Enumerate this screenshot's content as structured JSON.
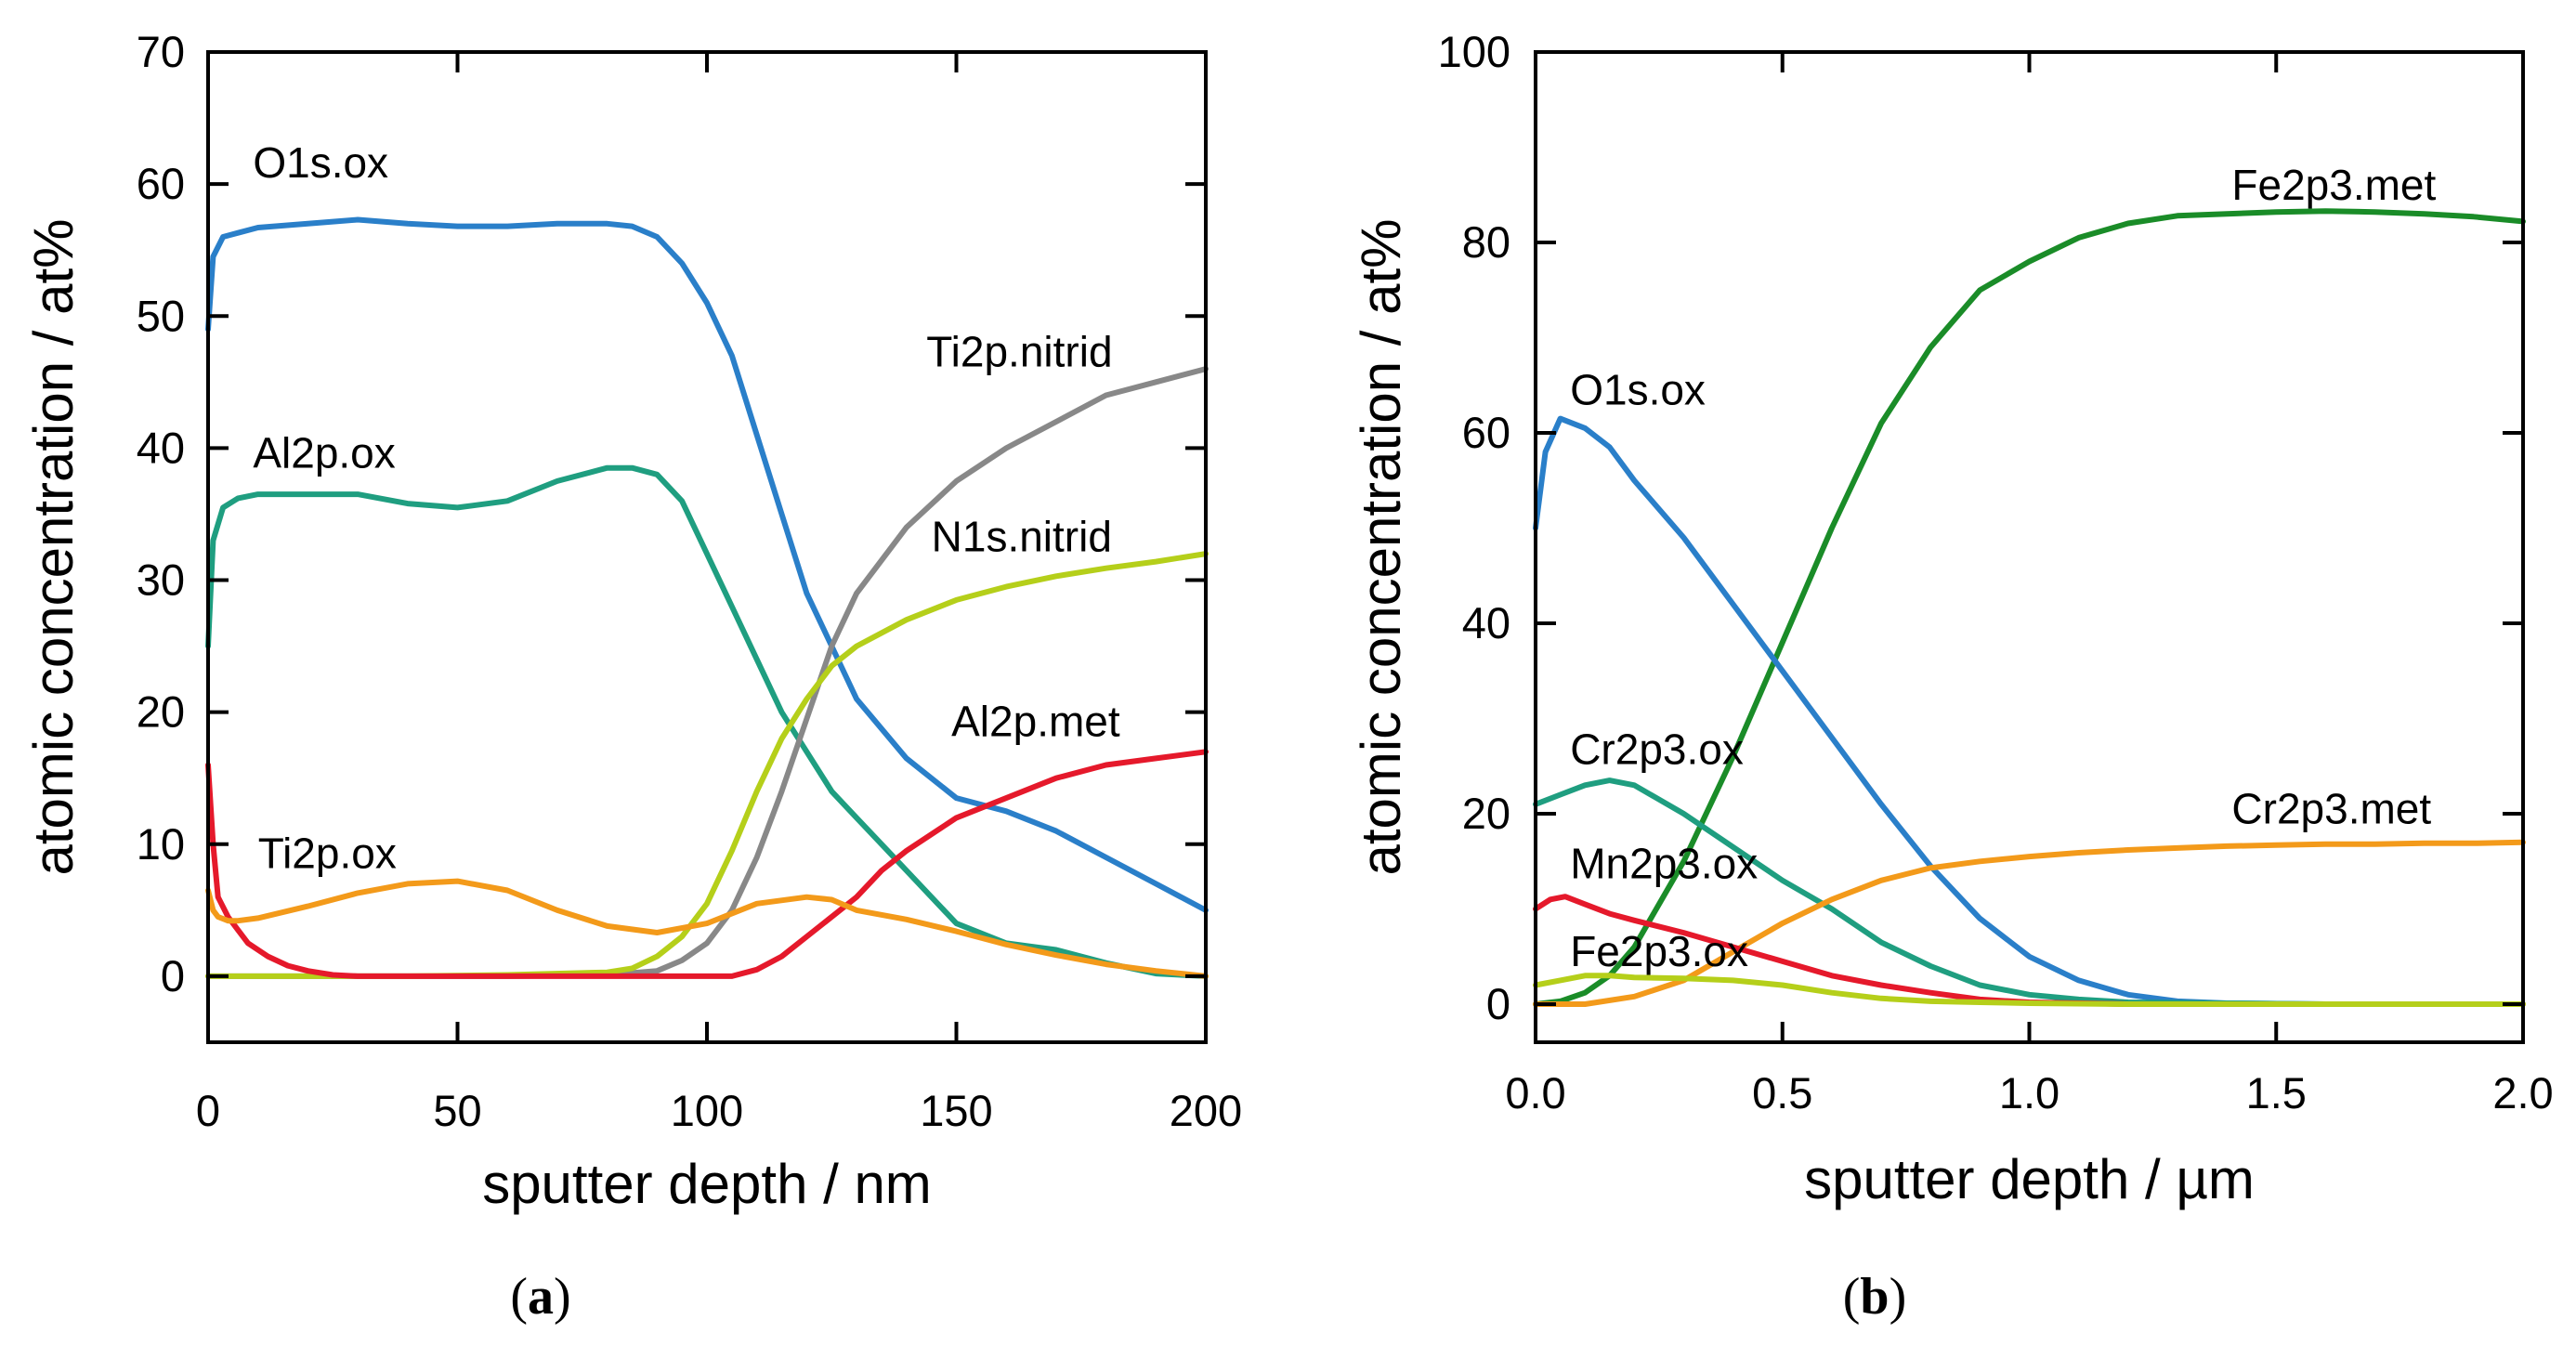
{
  "chart_data": [
    {
      "type": "line",
      "panel": "a",
      "caption": {
        "open": "(",
        "letter": "a",
        "close": ")"
      },
      "xlabel": "sputter depth / nm",
      "ylabel": "atomic concentration / at%",
      "xlim": [
        0,
        200
      ],
      "ylim": [
        -5,
        70
      ],
      "xticks": [
        0,
        50,
        100,
        150,
        200
      ],
      "yticks": [
        0,
        10,
        20,
        30,
        40,
        50,
        60,
        70
      ],
      "xtick_labels": [
        "0",
        "50",
        "100",
        "150",
        "200"
      ],
      "ytick_labels": [
        "0",
        "10",
        "20",
        "30",
        "40",
        "50",
        "60",
        "70"
      ],
      "series": [
        {
          "name": "O1s.ox",
          "color": "#2a7fc9",
          "label_at": [
            9,
            60.5
          ],
          "x": [
            0,
            1,
            3,
            6,
            10,
            20,
            30,
            40,
            50,
            60,
            70,
            80,
            85,
            90,
            95,
            100,
            105,
            110,
            115,
            120,
            125,
            130,
            140,
            150,
            160,
            170,
            180,
            190,
            200
          ],
          "y": [
            49,
            54.5,
            56,
            56.3,
            56.7,
            57,
            57.3,
            57,
            56.8,
            56.8,
            57,
            57,
            56.8,
            56,
            54,
            51,
            47,
            41,
            35,
            29,
            25,
            21,
            16.5,
            13.5,
            12.5,
            11,
            9,
            7,
            5
          ]
        },
        {
          "name": "Al2p.ox",
          "color": "#1f9e80",
          "label_at": [
            9,
            38.5
          ],
          "x": [
            0,
            1,
            3,
            6,
            10,
            20,
            30,
            40,
            50,
            60,
            70,
            80,
            85,
            90,
            95,
            100,
            105,
            110,
            115,
            120,
            125,
            130,
            140,
            150,
            160,
            170,
            180,
            190,
            200
          ],
          "y": [
            25,
            33,
            35.5,
            36.2,
            36.5,
            36.5,
            36.5,
            35.8,
            35.5,
            36,
            37.5,
            38.5,
            38.5,
            38,
            36,
            32,
            28,
            24,
            20,
            17,
            14,
            12,
            8,
            4,
            2.5,
            2,
            1,
            0.2,
            0
          ]
        },
        {
          "name": "Ti2p.nitrid",
          "color": "#888888",
          "label_at": [
            144,
            46.2
          ],
          "x": [
            0,
            20,
            40,
            60,
            80,
            90,
            95,
            100,
            105,
            110,
            115,
            120,
            125,
            130,
            140,
            150,
            160,
            170,
            180,
            190,
            200
          ],
          "y": [
            0,
            0,
            0,
            0,
            0.1,
            0.4,
            1.2,
            2.5,
            5,
            9,
            14,
            19.5,
            25,
            29,
            34,
            37.5,
            40,
            42,
            44,
            45,
            46
          ]
        },
        {
          "name": "N1s.nitrid",
          "color": "#b5cf1a",
          "label_at": [
            145,
            32.2
          ],
          "x": [
            0,
            20,
            40,
            60,
            80,
            85,
            90,
            95,
            100,
            105,
            110,
            115,
            120,
            125,
            130,
            140,
            150,
            160,
            170,
            180,
            190,
            200
          ],
          "y": [
            0,
            0,
            0,
            0.1,
            0.3,
            0.6,
            1.5,
            3,
            5.5,
            9.5,
            14,
            18,
            21,
            23.5,
            25,
            27,
            28.5,
            29.5,
            30.3,
            30.9,
            31.4,
            32
          ]
        },
        {
          "name": "Al2p.met",
          "color": "#e5192b",
          "label_at": [
            149,
            18.2
          ],
          "x": [
            0,
            1,
            2,
            4,
            6,
            8,
            12,
            16,
            20,
            25,
            30,
            40,
            60,
            80,
            100,
            105,
            110,
            115,
            120,
            125,
            130,
            135,
            140,
            150,
            160,
            170,
            180,
            190,
            200
          ],
          "y": [
            16,
            10,
            6,
            4.5,
            3.5,
            2.5,
            1.5,
            0.8,
            0.4,
            0.1,
            0,
            0,
            0,
            0,
            0,
            0,
            0.5,
            1.5,
            3,
            4.5,
            6,
            8,
            9.5,
            12,
            13.5,
            15,
            16,
            16.5,
            17
          ]
        },
        {
          "name": "Ti2p.ox",
          "color": "#f39a1a",
          "label_at": [
            10,
            8.2
          ],
          "x": [
            0,
            1,
            2,
            4,
            6,
            10,
            20,
            30,
            40,
            50,
            60,
            70,
            80,
            90,
            100,
            110,
            120,
            125,
            130,
            140,
            150,
            160,
            170,
            180,
            190,
            200
          ],
          "y": [
            6.5,
            5,
            4.5,
            4.2,
            4.2,
            4.4,
            5.3,
            6.3,
            7,
            7.2,
            6.5,
            5,
            3.8,
            3.3,
            4,
            5.5,
            6,
            5.8,
            5,
            4.3,
            3.4,
            2.4,
            1.6,
            0.9,
            0.4,
            0
          ]
        }
      ]
    },
    {
      "type": "line",
      "panel": "b",
      "caption": {
        "open": "(",
        "letter": "b",
        "close": ")"
      },
      "xlabel": "sputter depth / µm",
      "ylabel": "atomic concentration / at%",
      "xlim": [
        0,
        2
      ],
      "ylim": [
        -4,
        100
      ],
      "xticks": [
        0,
        0.5,
        1.0,
        1.5,
        2.0
      ],
      "yticks": [
        0,
        20,
        40,
        60,
        80,
        100
      ],
      "xtick_labels": [
        "0.0",
        "0.5",
        "1.0",
        "1.5",
        "2.0"
      ],
      "ytick_labels": [
        "0",
        "20",
        "40",
        "60",
        "80",
        "100"
      ],
      "series": [
        {
          "name": "Fe2p3.met",
          "color": "#1a8c28",
          "label_at": [
            1.41,
            84.5
          ],
          "x": [
            0,
            0.05,
            0.1,
            0.15,
            0.2,
            0.3,
            0.4,
            0.5,
            0.6,
            0.7,
            0.8,
            0.9,
            1.0,
            1.1,
            1.2,
            1.3,
            1.4,
            1.5,
            1.6,
            1.7,
            1.8,
            1.9,
            2.0
          ],
          "y": [
            0,
            0.3,
            1.2,
            3,
            6,
            15,
            26,
            38,
            50,
            61,
            69,
            75,
            78,
            80.5,
            82,
            82.8,
            83,
            83.2,
            83.3,
            83.2,
            83,
            82.7,
            82.2
          ]
        },
        {
          "name": "O1s.ox",
          "color": "#2a7fc9",
          "label_at": [
            0.07,
            63
          ],
          "x": [
            0,
            0.02,
            0.05,
            0.1,
            0.15,
            0.2,
            0.3,
            0.4,
            0.5,
            0.6,
            0.7,
            0.8,
            0.9,
            1.0,
            1.1,
            1.2,
            1.3,
            1.4,
            1.6,
            1.8,
            2.0
          ],
          "y": [
            50,
            58,
            61.5,
            60.5,
            58.5,
            55,
            49,
            42,
            35,
            28,
            21,
            14.5,
            9,
            5,
            2.5,
            1,
            0.3,
            0.1,
            0,
            0,
            0
          ]
        },
        {
          "name": "Cr2p3.ox",
          "color": "#1f9e80",
          "label_at": [
            0.07,
            25.2
          ],
          "x": [
            0,
            0.05,
            0.1,
            0.15,
            0.2,
            0.3,
            0.4,
            0.5,
            0.6,
            0.7,
            0.8,
            0.9,
            1.0,
            1.1,
            1.2,
            1.4,
            1.6,
            1.8,
            2.0
          ],
          "y": [
            21,
            22,
            23,
            23.5,
            23,
            20,
            16.5,
            13,
            10,
            6.5,
            4,
            2,
            1,
            0.5,
            0.2,
            0.1,
            0,
            0,
            0
          ]
        },
        {
          "name": "Cr2p3.met",
          "color": "#f39a1a",
          "label_at": [
            1.41,
            19
          ],
          "x": [
            0,
            0.1,
            0.2,
            0.3,
            0.4,
            0.5,
            0.6,
            0.7,
            0.8,
            0.9,
            1.0,
            1.1,
            1.2,
            1.3,
            1.4,
            1.5,
            1.6,
            1.7,
            1.8,
            1.9,
            2.0
          ],
          "y": [
            0,
            0,
            0.8,
            2.5,
            5.5,
            8.5,
            11,
            13,
            14.3,
            15,
            15.5,
            15.9,
            16.2,
            16.4,
            16.6,
            16.7,
            16.8,
            16.8,
            16.9,
            16.9,
            17
          ]
        },
        {
          "name": "Mn2p3.ox",
          "color": "#e5192b",
          "label_at": [
            0.07,
            13.2
          ],
          "x": [
            0,
            0.03,
            0.06,
            0.1,
            0.15,
            0.2,
            0.3,
            0.4,
            0.5,
            0.6,
            0.7,
            0.8,
            0.9,
            1.0,
            1.2,
            1.4,
            1.6,
            2.0
          ],
          "y": [
            10,
            11,
            11.3,
            10.5,
            9.5,
            8.8,
            7.5,
            6,
            4.5,
            3,
            2,
            1.2,
            0.5,
            0.2,
            0,
            0,
            0,
            0
          ]
        },
        {
          "name": "Fe2p3.ox",
          "color": "#b5cf1a",
          "label_at": [
            0.07,
            4
          ],
          "x": [
            0,
            0.05,
            0.1,
            0.15,
            0.2,
            0.3,
            0.4,
            0.5,
            0.6,
            0.7,
            0.8,
            0.9,
            1.0,
            1.2,
            1.5,
            2.0
          ],
          "y": [
            2,
            2.5,
            3,
            3,
            2.8,
            2.7,
            2.5,
            2,
            1.2,
            0.6,
            0.3,
            0.2,
            0.1,
            0,
            0,
            0
          ]
        }
      ]
    }
  ]
}
